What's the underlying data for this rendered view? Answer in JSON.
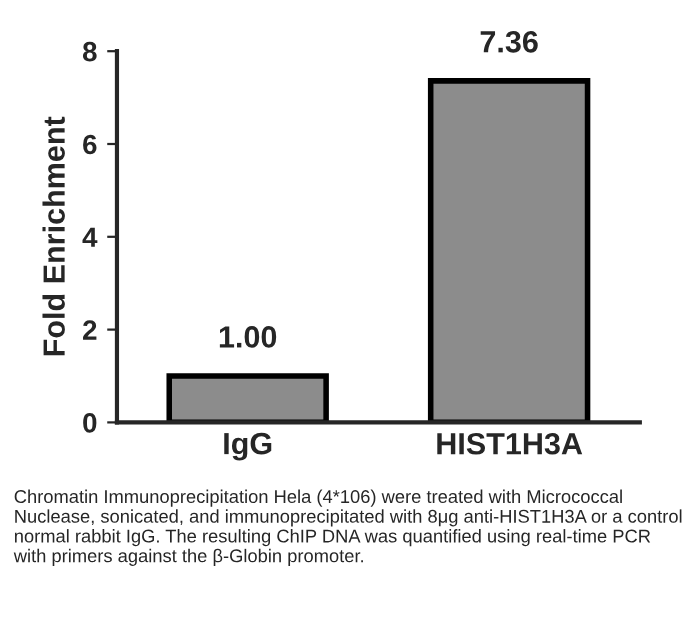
{
  "chart_data": {
    "type": "bar",
    "ylabel": "Fold Enrichment",
    "categories": [
      "IgG",
      "HIST1H3A"
    ],
    "values": [
      1.0,
      7.36
    ],
    "value_labels": [
      "1.00",
      "7.36"
    ],
    "color": "#8c8c8c",
    "ylim": [
      0,
      8
    ],
    "yticks": [
      0,
      2,
      4,
      6,
      8
    ],
    "grid": false,
    "annotations": [
      "Chromatin Immunoprecipitation Hela (4*106) were treated with Micrococcal Nuclease, sonicated, and immunoprecipitated with 8μg anti-HIST1H3A or a control normal rabbit IgG. The resulting ChIP DNA was quantified using real-time PCR with primers against the β-Globin promoter."
    ]
  }
}
